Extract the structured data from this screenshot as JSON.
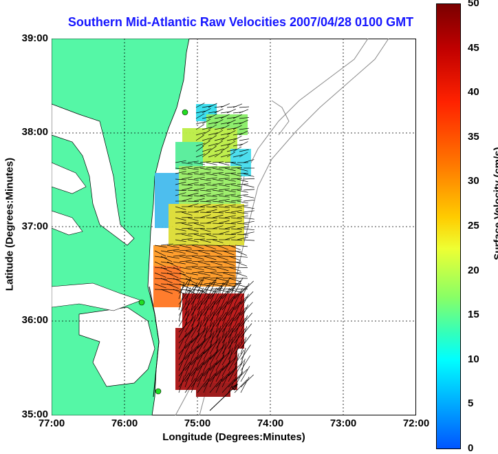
{
  "title": "Southern Mid-Atlantic Raw Velocities 2007/04/28 0100 GMT",
  "xlabel": "Longitude (Degrees:Minutes)",
  "ylabel": "Latitude (Degrees:Minutes)",
  "xticks": [
    "77:00",
    "76:00",
    "75:00",
    "74:00",
    "73:00",
    "72:00"
  ],
  "yticks": [
    "39:00",
    "38:00",
    "37:00",
    "36:00",
    "35:00"
  ],
  "colorbar": {
    "label": "Surface Velocity (cm/s)",
    "ticks": [
      "50",
      "45",
      "40",
      "35",
      "30",
      "25",
      "20",
      "15",
      "10",
      "5",
      "0"
    ],
    "min": 0,
    "max": 50
  },
  "colors": {
    "land": "#55f7a6",
    "coast": "#000000",
    "station": "#22dd22",
    "grid": "#000000",
    "bathymetry": "#888888"
  }
}
